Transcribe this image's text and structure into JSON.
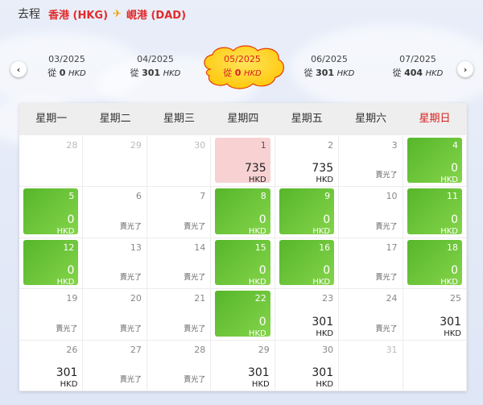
{
  "header": {
    "label": "去程",
    "origin": "香港 (HKG)",
    "destination": "峴港 (DAD)"
  },
  "months": [
    {
      "month": "03/2025",
      "prefix": "從",
      "price": "0",
      "currency": "HKD"
    },
    {
      "month": "04/2025",
      "prefix": "從",
      "price": "301",
      "currency": "HKD"
    },
    {
      "month": "05/2025",
      "prefix": "從",
      "price": "0",
      "currency": "HKD"
    },
    {
      "month": "06/2025",
      "prefix": "從",
      "price": "301",
      "currency": "HKD"
    },
    {
      "month": "07/2025",
      "prefix": "從",
      "price": "404",
      "currency": "HKD"
    }
  ],
  "nav": {
    "prev": "‹",
    "next": "›"
  },
  "weekdays": [
    "星期一",
    "星期二",
    "星期三",
    "星期四",
    "星期五",
    "星期六",
    "星期日"
  ],
  "days": [
    {
      "day": "28",
      "state": "out"
    },
    {
      "day": "29",
      "state": "out"
    },
    {
      "day": "30",
      "state": "out"
    },
    {
      "day": "1",
      "state": "pink",
      "price": "735",
      "currency": "HKD"
    },
    {
      "day": "2",
      "state": "price",
      "price": "735",
      "currency": "HKD"
    },
    {
      "day": "3",
      "state": "sold",
      "note": "賣光了"
    },
    {
      "day": "4",
      "state": "green",
      "price": "0",
      "currency": "HKD"
    },
    {
      "day": "5",
      "state": "green",
      "price": "0",
      "currency": "HKD"
    },
    {
      "day": "6",
      "state": "sold",
      "note": "賣光了"
    },
    {
      "day": "7",
      "state": "sold",
      "note": "賣光了"
    },
    {
      "day": "8",
      "state": "green",
      "price": "0",
      "currency": "HKD"
    },
    {
      "day": "9",
      "state": "green",
      "price": "0",
      "currency": "HKD"
    },
    {
      "day": "10",
      "state": "sold",
      "note": "賣光了"
    },
    {
      "day": "11",
      "state": "green",
      "price": "0",
      "currency": "HKD"
    },
    {
      "day": "12",
      "state": "green",
      "price": "0",
      "currency": "HKD"
    },
    {
      "day": "13",
      "state": "sold",
      "note": "賣光了"
    },
    {
      "day": "14",
      "state": "sold",
      "note": "賣光了"
    },
    {
      "day": "15",
      "state": "green",
      "price": "0",
      "currency": "HKD"
    },
    {
      "day": "16",
      "state": "green",
      "price": "0",
      "currency": "HKD"
    },
    {
      "day": "17",
      "state": "sold",
      "note": "賣光了"
    },
    {
      "day": "18",
      "state": "green",
      "price": "0",
      "currency": "HKD"
    },
    {
      "day": "19",
      "state": "sold",
      "note": "賣光了"
    },
    {
      "day": "20",
      "state": "sold",
      "note": "賣光了"
    },
    {
      "day": "21",
      "state": "sold",
      "note": "賣光了"
    },
    {
      "day": "22",
      "state": "green",
      "price": "0",
      "currency": "HKD"
    },
    {
      "day": "23",
      "state": "price",
      "price": "301",
      "currency": "HKD"
    },
    {
      "day": "24",
      "state": "sold",
      "note": "賣光了"
    },
    {
      "day": "25",
      "state": "price",
      "price": "301",
      "currency": "HKD"
    },
    {
      "day": "26",
      "state": "price",
      "price": "301",
      "currency": "HKD"
    },
    {
      "day": "27",
      "state": "sold",
      "note": "賣光了"
    },
    {
      "day": "28",
      "state": "sold",
      "note": "賣光了"
    },
    {
      "day": "29",
      "state": "price",
      "price": "301",
      "currency": "HKD"
    },
    {
      "day": "30",
      "state": "price",
      "price": "301",
      "currency": "HKD"
    },
    {
      "day": "31",
      "state": "out"
    },
    {
      "day": "",
      "state": "empty"
    }
  ],
  "colors": {
    "accent_red": "#d81e1e",
    "available_green": "#56b62a",
    "selected_pink": "#f8d2d3",
    "active_month_yellow": "#ffcc00"
  }
}
